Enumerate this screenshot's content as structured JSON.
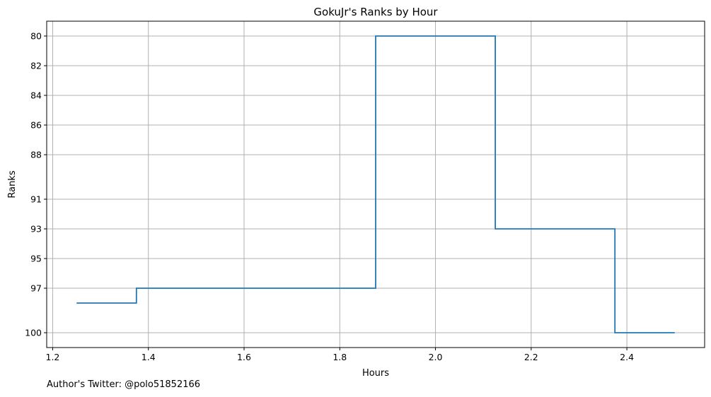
{
  "chart_data": {
    "type": "line",
    "drawstyle": "steps-mid",
    "title": "GokuJr's Ranks by Hour",
    "xlabel": "Hours",
    "ylabel": "Ranks",
    "xlim": [
      1.1875,
      2.5625
    ],
    "ylim_inverted": [
      101,
      79
    ],
    "grid": true,
    "x_ticks": [
      {
        "value": 1.2,
        "label": "1.2"
      },
      {
        "value": 1.4,
        "label": "1.4"
      },
      {
        "value": 1.6,
        "label": "1.6"
      },
      {
        "value": 1.8,
        "label": "1.8"
      },
      {
        "value": 2.0,
        "label": "2.0"
      },
      {
        "value": 2.2,
        "label": "2.2"
      },
      {
        "value": 2.4,
        "label": "2.4"
      }
    ],
    "y_ticks": [
      {
        "value": 80,
        "label": "80"
      },
      {
        "value": 82,
        "label": "82"
      },
      {
        "value": 84,
        "label": "84"
      },
      {
        "value": 86,
        "label": "86"
      },
      {
        "value": 88,
        "label": "88"
      },
      {
        "value": 91,
        "label": "91"
      },
      {
        "value": 93,
        "label": "93"
      },
      {
        "value": 95,
        "label": "95"
      },
      {
        "value": 97,
        "label": "97"
      },
      {
        "value": 100,
        "label": "100"
      }
    ],
    "series": [
      {
        "color": "#1f77b4",
        "x": [
          1.25,
          1.5,
          1.75,
          2.0,
          2.25,
          2.5
        ],
        "y": [
          98,
          97,
          97,
          80,
          93,
          100
        ]
      }
    ]
  },
  "footer": {
    "credit": "Author's Twitter: @polo51852166"
  }
}
